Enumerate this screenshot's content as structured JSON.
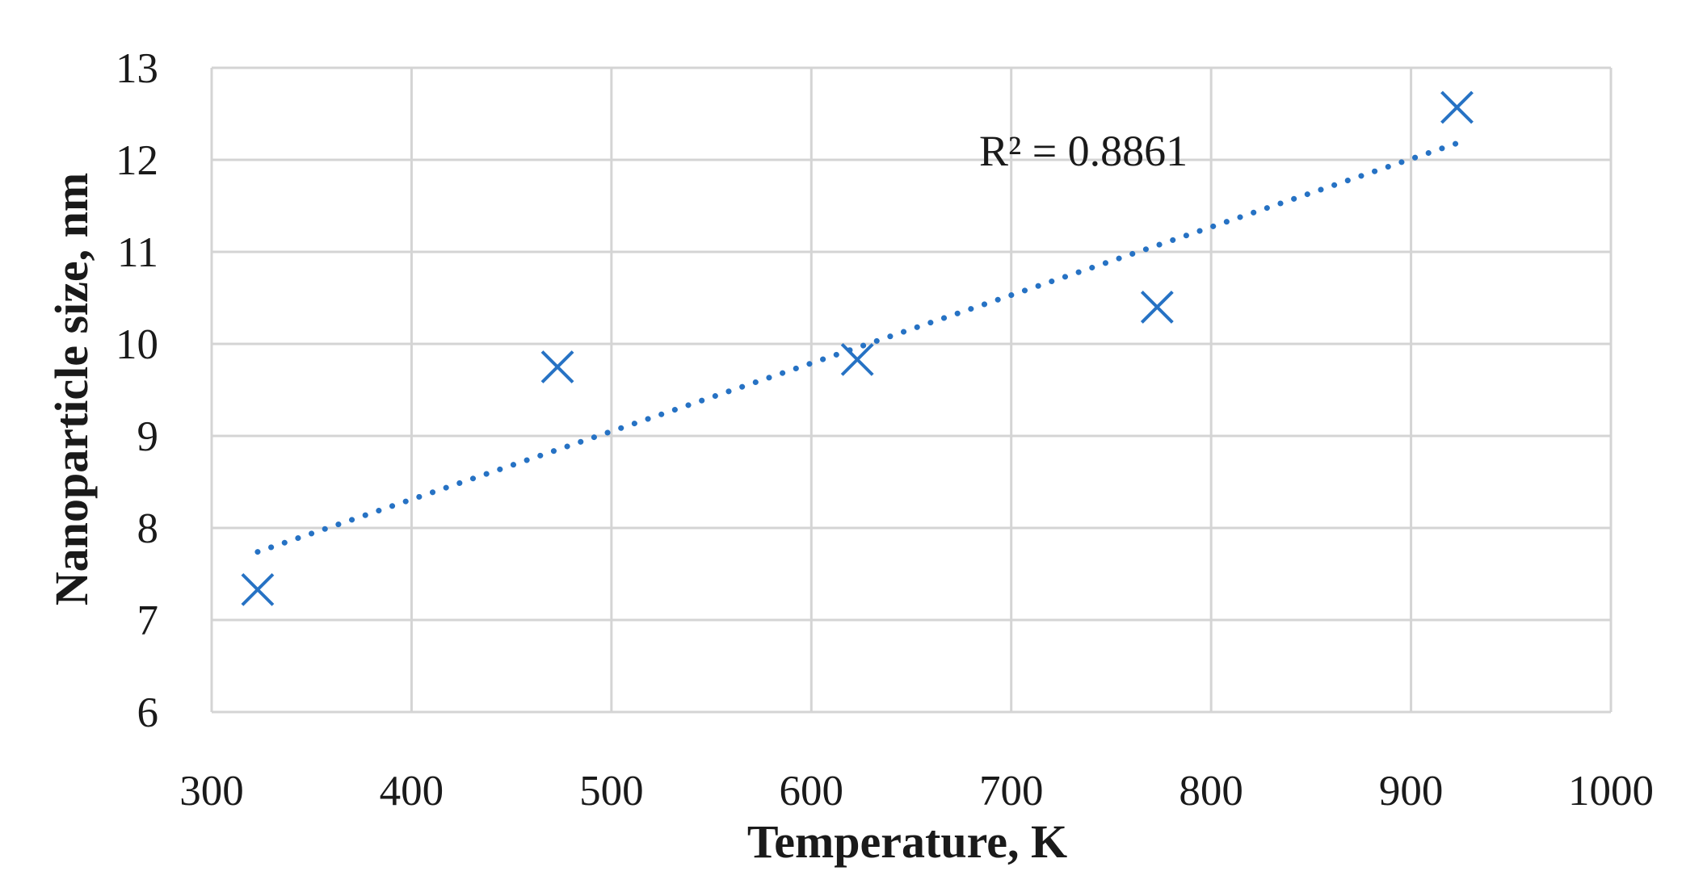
{
  "chart_data": {
    "type": "scatter",
    "xlabel": "Temperature, K",
    "ylabel": "Nanoparticle size, nm",
    "xlim": [
      300,
      1000
    ],
    "ylim": [
      6,
      13
    ],
    "x_ticks": [
      300,
      400,
      500,
      600,
      700,
      800,
      900,
      1000
    ],
    "y_ticks": [
      6,
      7,
      8,
      9,
      10,
      11,
      12,
      13
    ],
    "grid": true,
    "series": [
      {
        "x": [
          323,
          473,
          623,
          773,
          923
        ],
        "y": [
          7.33,
          9.75,
          9.83,
          10.4,
          12.57
        ],
        "marker": "x",
        "color": "#2672c4"
      }
    ],
    "trendline": {
      "type": "linear",
      "style": "dotted",
      "color": "#2672c4",
      "x_range": [
        323,
        923
      ],
      "y_range": [
        7.74,
        12.18
      ],
      "label": "R² = 0.8861"
    }
  }
}
